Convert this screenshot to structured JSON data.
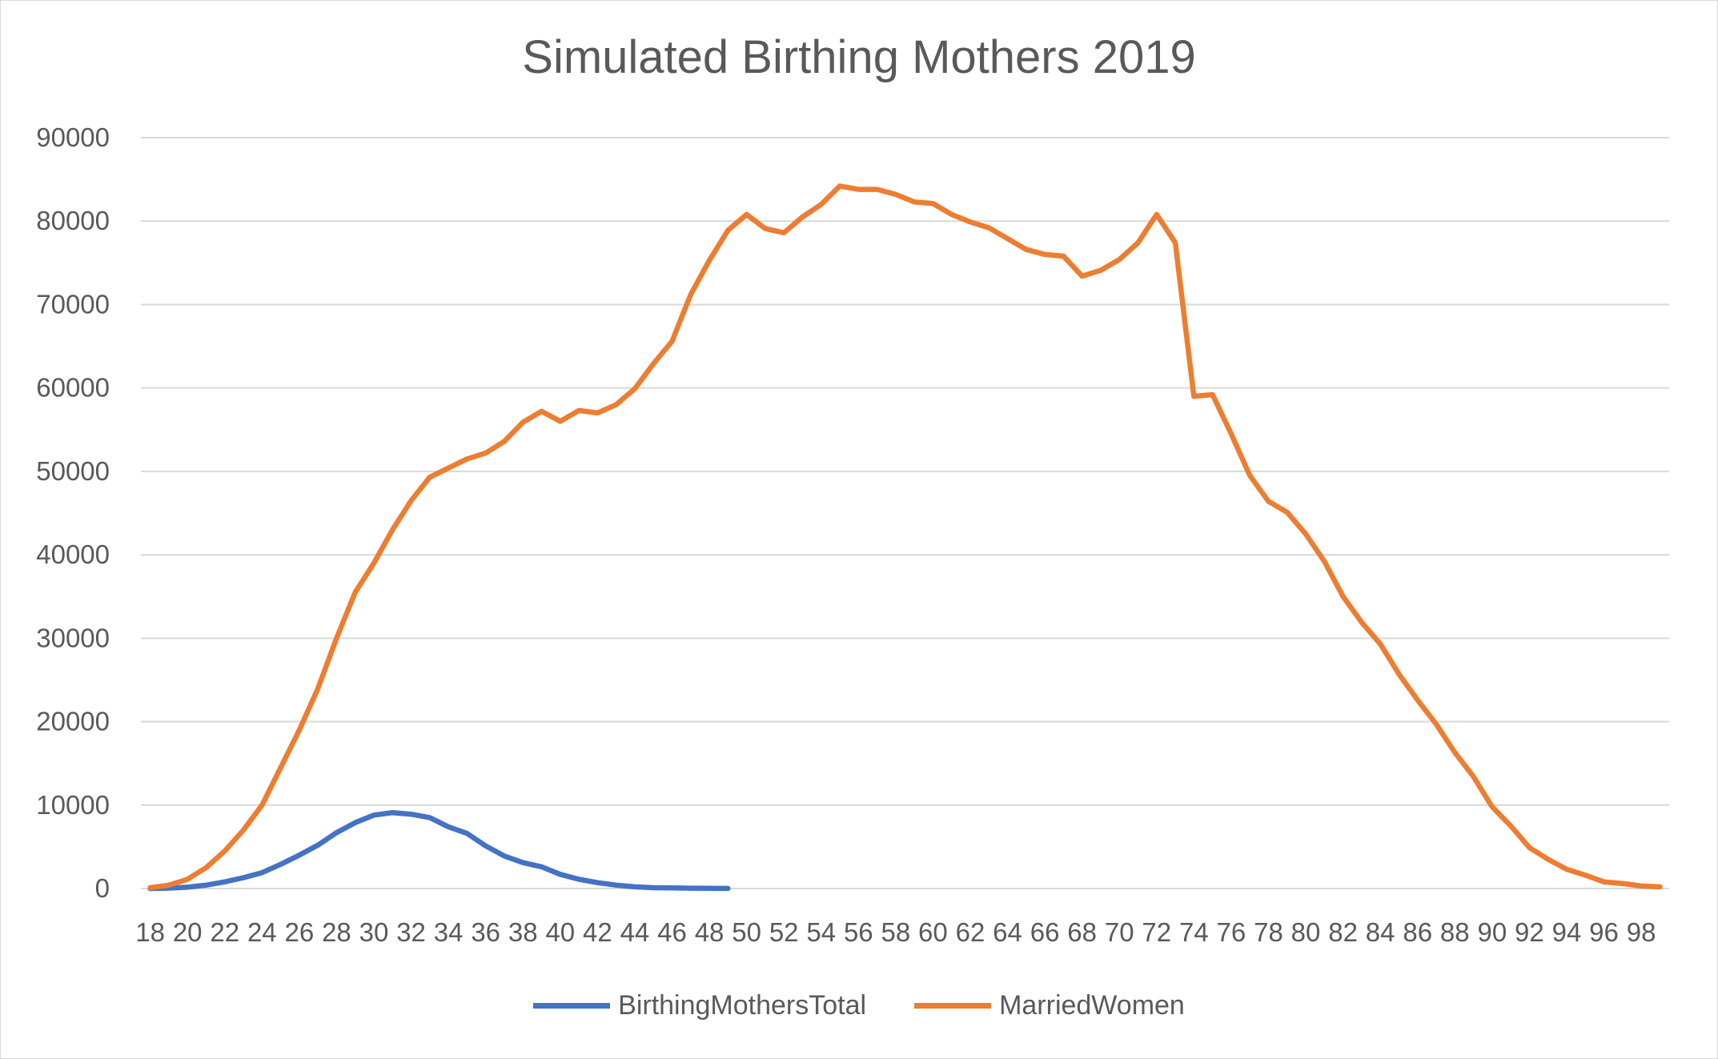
{
  "chart_data": {
    "type": "line",
    "title": "Simulated Birthing Mothers 2019",
    "xlabel": "",
    "ylabel": "",
    "ylim": [
      0,
      90000
    ],
    "yticks": [
      0,
      10000,
      20000,
      30000,
      40000,
      50000,
      60000,
      70000,
      80000,
      90000
    ],
    "xticks": [
      18,
      20,
      22,
      24,
      26,
      28,
      30,
      32,
      34,
      36,
      38,
      40,
      42,
      44,
      46,
      48,
      50,
      52,
      54,
      56,
      58,
      60,
      62,
      64,
      66,
      68,
      70,
      72,
      74,
      76,
      78,
      80,
      82,
      84,
      86,
      88,
      90,
      92,
      94,
      96,
      98
    ],
    "grid": true,
    "legend_position": "bottom",
    "series": [
      {
        "name": "BirthingMothersTotal",
        "color": "#4472C4",
        "x": [
          18,
          19,
          20,
          21,
          22,
          23,
          24,
          25,
          26,
          27,
          28,
          29,
          30,
          31,
          32,
          33,
          34,
          35,
          36,
          37,
          38,
          39,
          40,
          41,
          42,
          43,
          44,
          45,
          46,
          47,
          48,
          49
        ],
        "values": [
          0,
          50,
          150,
          400,
          800,
          1300,
          1900,
          2900,
          4000,
          5200,
          6700,
          7900,
          8800,
          9100,
          8900,
          8500,
          7400,
          6600,
          5100,
          3900,
          3100,
          2600,
          1700,
          1100,
          700,
          400,
          200,
          100,
          80,
          40,
          20,
          10
        ]
      },
      {
        "name": "MarriedWomen",
        "color": "#ED7D31",
        "x": [
          18,
          19,
          20,
          21,
          22,
          23,
          24,
          25,
          26,
          27,
          28,
          29,
          30,
          31,
          32,
          33,
          34,
          35,
          36,
          37,
          38,
          39,
          40,
          41,
          42,
          43,
          44,
          45,
          46,
          47,
          48,
          49,
          50,
          51,
          52,
          53,
          54,
          55,
          56,
          57,
          58,
          59,
          60,
          61,
          62,
          63,
          64,
          65,
          66,
          67,
          68,
          69,
          70,
          71,
          72,
          73,
          74,
          75,
          76,
          77,
          78,
          79,
          80,
          81,
          82,
          83,
          84,
          85,
          86,
          87,
          88,
          89,
          90,
          91,
          92,
          93,
          94,
          95,
          96,
          97,
          98,
          99
        ],
        "values": [
          100,
          400,
          1100,
          2500,
          4500,
          7000,
          10000,
          14500,
          19000,
          24000,
          30000,
          35500,
          39000,
          43000,
          46500,
          49300,
          50400,
          51500,
          52200,
          53600,
          55900,
          57200,
          56000,
          57300,
          57000,
          58000,
          59900,
          62900,
          65600,
          71200,
          75300,
          78900,
          80800,
          79100,
          78600,
          80500,
          82000,
          84200,
          83800,
          83800,
          83200,
          82300,
          82100,
          80800,
          79900,
          79200,
          77900,
          76600,
          76000,
          75800,
          73400,
          74100,
          75400,
          77400,
          80800,
          77400,
          59000,
          59200,
          54500,
          49500,
          46400,
          45100,
          42500,
          39200,
          35000,
          31900,
          29300,
          25700,
          22600,
          19700,
          16300,
          13400,
          9800,
          7500,
          4900,
          3500,
          2300,
          1600,
          800,
          600,
          300,
          200
        ]
      }
    ]
  }
}
